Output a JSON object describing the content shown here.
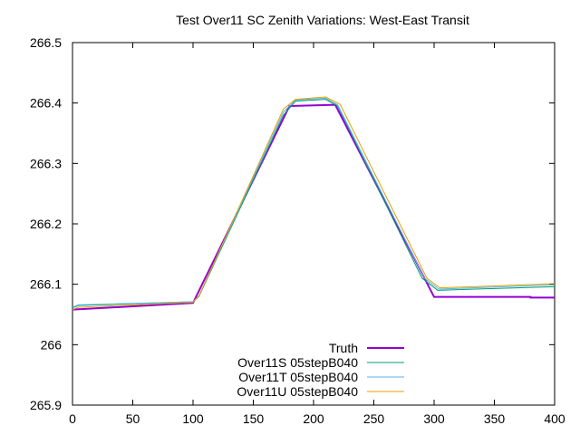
{
  "chart_data": {
    "type": "line",
    "title": "Test Over11 SC Zenith Variations: West-East Transit",
    "xlabel": "",
    "ylabel": "",
    "xlim": [
      0,
      400
    ],
    "ylim": [
      265.9,
      266.5
    ],
    "xticks": [
      "0",
      "50",
      "100",
      "150",
      "200",
      "250",
      "300",
      "350",
      "400"
    ],
    "yticks": [
      "265.9",
      "266",
      "266.1",
      "266.2",
      "266.3",
      "266.4",
      "266.5"
    ],
    "grid": false,
    "legend_position": "bottom-center",
    "series": [
      {
        "name": "Truth",
        "color": "#9400d3",
        "width": 2,
        "x": [
          0,
          100,
          180,
          218,
          300,
          380,
          380,
          400
        ],
        "y": [
          266.058,
          266.069,
          266.395,
          266.397,
          266.079,
          266.079,
          266.078,
          266.078
        ]
      },
      {
        "name": "Over11S 05stepB040",
        "color": "#009e73",
        "width": 1,
        "x": [
          0,
          5,
          100,
          105,
          175,
          185,
          210,
          220,
          290,
          303,
          400
        ],
        "y": [
          266.061,
          266.065,
          266.071,
          266.08,
          266.38,
          266.403,
          266.406,
          266.395,
          266.11,
          266.09,
          266.096
        ]
      },
      {
        "name": "Over11T 05stepB040",
        "color": "#56b4e9",
        "width": 1,
        "x": [
          0,
          5,
          100,
          105,
          175,
          185,
          210,
          220,
          292,
          304,
          400
        ],
        "y": [
          266.062,
          266.066,
          266.071,
          266.081,
          266.385,
          266.405,
          266.408,
          266.397,
          266.11,
          266.092,
          266.099
        ]
      },
      {
        "name": "Over11U 05stepB040",
        "color": "#e69f00",
        "width": 1,
        "x": [
          0,
          5,
          100,
          105,
          175,
          185,
          210,
          222,
          294,
          305,
          400
        ],
        "y": [
          266.058,
          266.062,
          266.07,
          266.081,
          266.39,
          266.406,
          266.41,
          266.398,
          266.11,
          266.094,
          266.101
        ]
      }
    ]
  }
}
